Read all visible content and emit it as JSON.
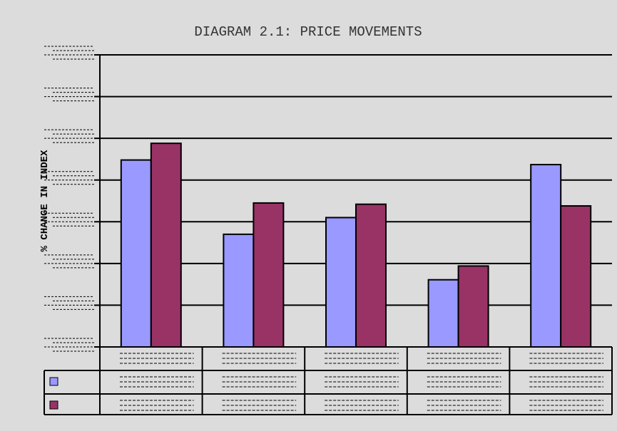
{
  "chart_data": {
    "type": "bar",
    "title": "DIAGRAM 2.1: PRICE MOVEMENTS",
    "xlabel": "",
    "ylabel": "% CHANGE IN INDEX",
    "ylim": [
      0,
      7
    ],
    "grid": true,
    "categories": [
      "",
      "",
      "",
      "",
      ""
    ],
    "series": [
      {
        "values": [
          4.48,
          2.7,
          3.1,
          1.61,
          4.37
        ],
        "color": "#9999ff"
      },
      {
        "values": [
          4.88,
          3.45,
          3.42,
          1.94,
          3.38
        ],
        "color": "#993366"
      }
    ],
    "legend": "data-table",
    "background": "#dcdcdc"
  }
}
